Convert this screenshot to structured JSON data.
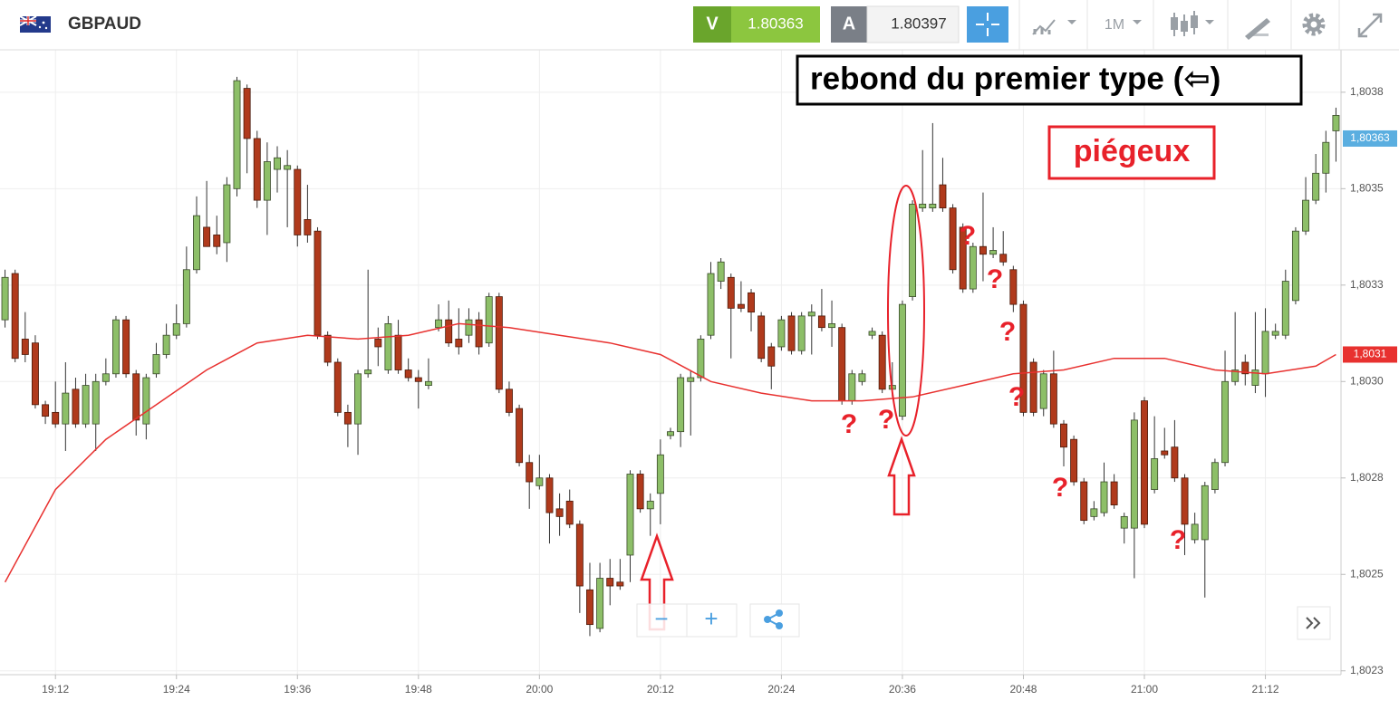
{
  "header": {
    "symbol": "GBPAUD",
    "sell_label": "V",
    "sell_price": "1.80363",
    "buy_label": "A",
    "buy_price": "1.80397",
    "timeframe": "1M"
  },
  "zoom": {
    "minus": "−",
    "plus": "+"
  },
  "annotations": {
    "box_text": "rebond du premier type (⇦)",
    "trap_text": "piégeux",
    "question_marks": [
      "?",
      "?",
      "?",
      "?",
      "?",
      "?",
      "?",
      "?"
    ]
  },
  "chart_data": {
    "type": "candlestick",
    "categories": [
      "19:07",
      "19:08",
      "19:09",
      "19:10",
      "19:11",
      "19:12",
      "19:13",
      "19:14",
      "19:15",
      "19:16",
      "19:17",
      "19:18",
      "19:19",
      "19:20",
      "19:21",
      "19:22",
      "19:23",
      "19:24",
      "19:25",
      "19:26",
      "19:27",
      "19:28",
      "19:29",
      "19:30",
      "19:31",
      "19:32",
      "19:33",
      "19:34",
      "19:35",
      "19:36",
      "19:37",
      "19:38",
      "19:39",
      "19:40",
      "19:41",
      "19:42",
      "19:43",
      "19:44",
      "19:45",
      "19:46",
      "19:47",
      "19:48",
      "19:49",
      "19:50",
      "19:51",
      "19:52",
      "19:53",
      "19:54",
      "19:55",
      "19:56",
      "19:57",
      "19:58",
      "19:59",
      "20:00",
      "20:01",
      "20:02",
      "20:03",
      "20:04",
      "20:05",
      "20:06",
      "20:07",
      "20:08",
      "20:09",
      "20:10",
      "20:11",
      "20:12",
      "20:13",
      "20:14",
      "20:15",
      "20:16",
      "20:17",
      "20:18",
      "20:19",
      "20:20",
      "20:21",
      "20:22",
      "20:23",
      "20:24",
      "20:25",
      "20:26",
      "20:27",
      "20:28",
      "20:29",
      "20:30",
      "20:31",
      "20:32",
      "20:33",
      "20:34",
      "20:35",
      "20:36",
      "20:37",
      "20:38",
      "20:39",
      "20:40",
      "20:41",
      "20:42",
      "20:43",
      "20:44",
      "20:45",
      "20:46",
      "20:47",
      "20:48",
      "20:49",
      "20:50",
      "20:51",
      "20:52",
      "20:53",
      "20:54",
      "20:55",
      "20:56",
      "20:57",
      "20:58",
      "20:59",
      "21:00",
      "21:01",
      "21:02",
      "21:03",
      "21:04",
      "21:05",
      "21:06",
      "21:07",
      "21:08",
      "21:09",
      "21:10",
      "21:11",
      "21:12",
      "21:13",
      "21:14",
      "21:15",
      "21:16",
      "21:17",
      "21:18",
      "21:19"
    ],
    "open": [
      1.80316,
      1.80328,
      1.80311,
      1.8031,
      1.80294,
      1.80292,
      1.80289,
      1.80298,
      1.80289,
      1.80289,
      1.803,
      1.80302,
      1.80316,
      1.80302,
      1.80289,
      1.80302,
      1.80307,
      1.80312,
      1.80315,
      1.80329,
      1.8034,
      1.80338,
      1.80336,
      1.8035,
      1.80376,
      1.80363,
      1.80347,
      1.80355,
      1.80355,
      1.80355,
      1.80342,
      1.80339,
      1.80312,
      1.80305,
      1.80292,
      1.80289,
      1.80302,
      1.80311,
      1.80303,
      1.80312,
      1.80303,
      1.80301,
      1.80299,
      1.80314,
      1.80316,
      1.80311,
      1.80312,
      1.80316,
      1.8031,
      1.80322,
      1.80298,
      1.80293,
      1.80279,
      1.80273,
      1.80275,
      1.80267,
      1.80269,
      1.80263,
      1.80246,
      1.80236,
      1.80249,
      1.80248,
      1.80255,
      1.80276,
      1.80267,
      1.80271,
      1.80286,
      1.80287,
      1.803,
      1.80301,
      1.80312,
      1.80326,
      1.80327,
      1.8032,
      1.80323,
      1.80317,
      1.80309,
      1.80309,
      1.80317,
      1.80308,
      1.80317,
      1.80317,
      1.80314,
      1.80314,
      1.80295,
      1.803,
      1.80312,
      1.80312,
      1.80298,
      1.80291,
      1.80322,
      1.80345,
      1.80345,
      1.80351,
      1.80345,
      1.8034,
      1.80324,
      1.80335,
      1.80333,
      1.80333,
      1.80329,
      1.8032,
      1.80305,
      1.80293,
      1.80302,
      1.80289,
      1.80285,
      1.80274,
      1.80265,
      1.80266,
      1.80274,
      1.80262,
      1.80262,
      1.80295,
      1.80272,
      1.80282,
      1.80283,
      1.80275,
      1.80259,
      1.80259,
      1.80272,
      1.80279,
      1.803,
      1.80305,
      1.80299,
      1.80302,
      1.80312,
      1.80312,
      1.80321,
      1.80339,
      1.80347,
      1.80354,
      1.80365
    ],
    "high": [
      1.80329,
      1.80329,
      1.80318,
      1.80312,
      1.80295,
      1.803,
      1.80305,
      1.80301,
      1.80302,
      1.80302,
      1.80306,
      1.80317,
      1.80317,
      1.80303,
      1.80302,
      1.8031,
      1.80315,
      1.8032,
      1.80335,
      1.80348,
      1.80352,
      1.80343,
      1.80353,
      1.80379,
      1.80377,
      1.80365,
      1.80362,
      1.80361,
      1.8036,
      1.80356,
      1.80351,
      1.8034,
      1.80313,
      1.80306,
      1.80294,
      1.80303,
      1.80329,
      1.80314,
      1.80317,
      1.80316,
      1.80306,
      1.80303,
      1.80306,
      1.8032,
      1.80321,
      1.80319,
      1.80319,
      1.80318,
      1.80323,
      1.80323,
      1.803,
      1.80294,
      1.80281,
      1.80281,
      1.80276,
      1.80271,
      1.80272,
      1.80264,
      1.80253,
      1.80253,
      1.80254,
      1.80254,
      1.80277,
      1.80277,
      1.80271,
      1.80285,
      1.80288,
      1.80302,
      1.80303,
      1.80312,
      1.80331,
      1.80332,
      1.80328,
      1.80326,
      1.80324,
      1.80318,
      1.8031,
      1.80317,
      1.80318,
      1.80318,
      1.8032,
      1.80324,
      1.80321,
      1.80315,
      1.80303,
      1.80303,
      1.80314,
      1.80313,
      1.80305,
      1.80321,
      1.80347,
      1.8036,
      1.80367,
      1.80358,
      1.80346,
      1.80341,
      1.80336,
      1.80349,
      1.8034,
      1.80339,
      1.8033,
      1.80321,
      1.80306,
      1.80303,
      1.80308,
      1.8029,
      1.80286,
      1.80275,
      1.80269,
      1.80279,
      1.80276,
      1.80266,
      1.80292,
      1.80296,
      1.80291,
      1.80288,
      1.8029,
      1.80276,
      1.80266,
      1.80274,
      1.8028,
      1.80308,
      1.80318,
      1.80307,
      1.80318,
      1.80319,
      1.80315,
      1.80329,
      1.8034,
      1.80353,
      1.80359,
      1.80365,
      1.80371
    ],
    "low": [
      1.80314,
      1.80305,
      1.80305,
      1.80293,
      1.80289,
      1.80288,
      1.80282,
      1.80288,
      1.80288,
      1.80282,
      1.80299,
      1.80301,
      1.80301,
      1.80286,
      1.80285,
      1.80301,
      1.80306,
      1.80311,
      1.80314,
      1.80328,
      1.80335,
      1.80333,
      1.80331,
      1.80348,
      1.80354,
      1.80345,
      1.80338,
      1.80349,
      1.8034,
      1.80335,
      1.80336,
      1.80311,
      1.80304,
      1.80291,
      1.80283,
      1.80281,
      1.80301,
      1.80304,
      1.80302,
      1.80302,
      1.803,
      1.80293,
      1.80298,
      1.80313,
      1.80309,
      1.80307,
      1.8031,
      1.80307,
      1.80309,
      1.80297,
      1.80291,
      1.80278,
      1.80267,
      1.80272,
      1.80258,
      1.8026,
      1.80262,
      1.8024,
      1.80234,
      1.80235,
      1.80242,
      1.80246,
      1.80248,
      1.80266,
      1.8026,
      1.80263,
      1.80285,
      1.80283,
      1.80286,
      1.803,
      1.80311,
      1.80324,
      1.80306,
      1.80318,
      1.80313,
      1.80305,
      1.80298,
      1.80308,
      1.80307,
      1.80307,
      1.80307,
      1.80313,
      1.80309,
      1.80294,
      1.80294,
      1.80299,
      1.80311,
      1.80297,
      1.80296,
      1.8029,
      1.80321,
      1.80344,
      1.80344,
      1.80344,
      1.80328,
      1.80323,
      1.80323,
      1.80326,
      1.80332,
      1.8033,
      1.80318,
      1.80291,
      1.80291,
      1.80291,
      1.80288,
      1.80278,
      1.80273,
      1.80263,
      1.80264,
      1.80265,
      1.80267,
      1.80258,
      1.80249,
      1.80262,
      1.80271,
      1.8028,
      1.80274,
      1.80255,
      1.80258,
      1.80244,
      1.80271,
      1.80278,
      1.80299,
      1.80299,
      1.80297,
      1.80296,
      1.80311,
      1.80311,
      1.8032,
      1.80338,
      1.80346,
      1.80349,
      1.80357
    ],
    "close": [
      1.80327,
      1.80306,
      1.80307,
      1.80294,
      1.80291,
      1.80289,
      1.80297,
      1.80289,
      1.80299,
      1.803,
      1.80302,
      1.80316,
      1.80302,
      1.8029,
      1.80301,
      1.80307,
      1.80312,
      1.80315,
      1.80329,
      1.80343,
      1.80335,
      1.80335,
      1.80351,
      1.80378,
      1.80363,
      1.80347,
      1.80357,
      1.80358,
      1.80356,
      1.80338,
      1.80338,
      1.80312,
      1.80305,
      1.80292,
      1.80289,
      1.80302,
      1.80303,
      1.80309,
      1.80315,
      1.80303,
      1.80301,
      1.803,
      1.803,
      1.80316,
      1.8031,
      1.80309,
      1.80316,
      1.80309,
      1.80322,
      1.80298,
      1.80292,
      1.80279,
      1.80274,
      1.80275,
      1.80266,
      1.80265,
      1.80263,
      1.80247,
      1.80237,
      1.80249,
      1.80247,
      1.80247,
      1.80276,
      1.80267,
      1.80269,
      1.80281,
      1.80287,
      1.80301,
      1.80301,
      1.80311,
      1.80328,
      1.80331,
      1.80319,
      1.80319,
      1.80318,
      1.80306,
      1.80304,
      1.80316,
      1.80308,
      1.80317,
      1.80318,
      1.80314,
      1.80315,
      1.80295,
      1.80302,
      1.80302,
      1.80313,
      1.80298,
      1.80299,
      1.8032,
      1.80346,
      1.80346,
      1.80346,
      1.80345,
      1.80329,
      1.80324,
      1.80335,
      1.80333,
      1.80334,
      1.80331,
      1.8032,
      1.80292,
      1.80292,
      1.80302,
      1.80289,
      1.80283,
      1.80274,
      1.80264,
      1.80267,
      1.80274,
      1.80268,
      1.80265,
      1.8029,
      1.80263,
      1.8028,
      1.80281,
      1.80275,
      1.80263,
      1.80263,
      1.80273,
      1.80279,
      1.803,
      1.80303,
      1.80302,
      1.80303,
      1.80313,
      1.80313,
      1.80326,
      1.80339,
      1.80347,
      1.80354,
      1.80362,
      1.80369
    ],
    "up_color": "#8dbf68",
    "down_color": "#b03a1c",
    "ma": {
      "color": "#e8312f",
      "x": [
        "19:07",
        "19:12",
        "19:17",
        "19:22",
        "19:27",
        "19:32",
        "19:37",
        "19:42",
        "19:47",
        "19:52",
        "19:57",
        "20:02",
        "20:07",
        "20:12",
        "20:17",
        "20:22",
        "20:27",
        "20:32",
        "20:37",
        "20:42",
        "20:47",
        "20:52",
        "20:57",
        "21:02",
        "21:07",
        "21:12",
        "21:17",
        "21:19"
      ],
      "values": [
        1.80248,
        1.80272,
        1.80285,
        1.80294,
        1.80303,
        1.8031,
        1.80312,
        1.80311,
        1.80312,
        1.80315,
        1.80314,
        1.80312,
        1.8031,
        1.80307,
        1.803,
        1.80297,
        1.80295,
        1.80295,
        1.80296,
        1.80299,
        1.80302,
        1.80303,
        1.80306,
        1.80306,
        1.80303,
        1.80302,
        1.80304,
        1.80307
      ],
      "last_label": {
        "value": 1.80307,
        "label": "1,8031"
      }
    },
    "last_price": {
      "value": 1.80363,
      "label": "1,80363",
      "color": "#5aaee0"
    },
    "ylim": [
      1.80224,
      1.80386
    ],
    "yticks": [
      {
        "value": 1.80375,
        "label": "1,8038"
      },
      {
        "value": 1.8035,
        "label": "1,8035"
      },
      {
        "value": 1.80325,
        "label": "1,8033"
      },
      {
        "value": 1.803,
        "label": "1,8030"
      },
      {
        "value": 1.80275,
        "label": "1,8028"
      },
      {
        "value": 1.8025,
        "label": "1,8025"
      },
      {
        "value": 1.80225,
        "label": "1,8023"
      }
    ],
    "xticks": [
      "19:12",
      "19:24",
      "19:36",
      "19:48",
      "20:00",
      "20:12",
      "20:24",
      "20:36",
      "20:48",
      "21:00",
      "21:12"
    ],
    "grid": true
  }
}
